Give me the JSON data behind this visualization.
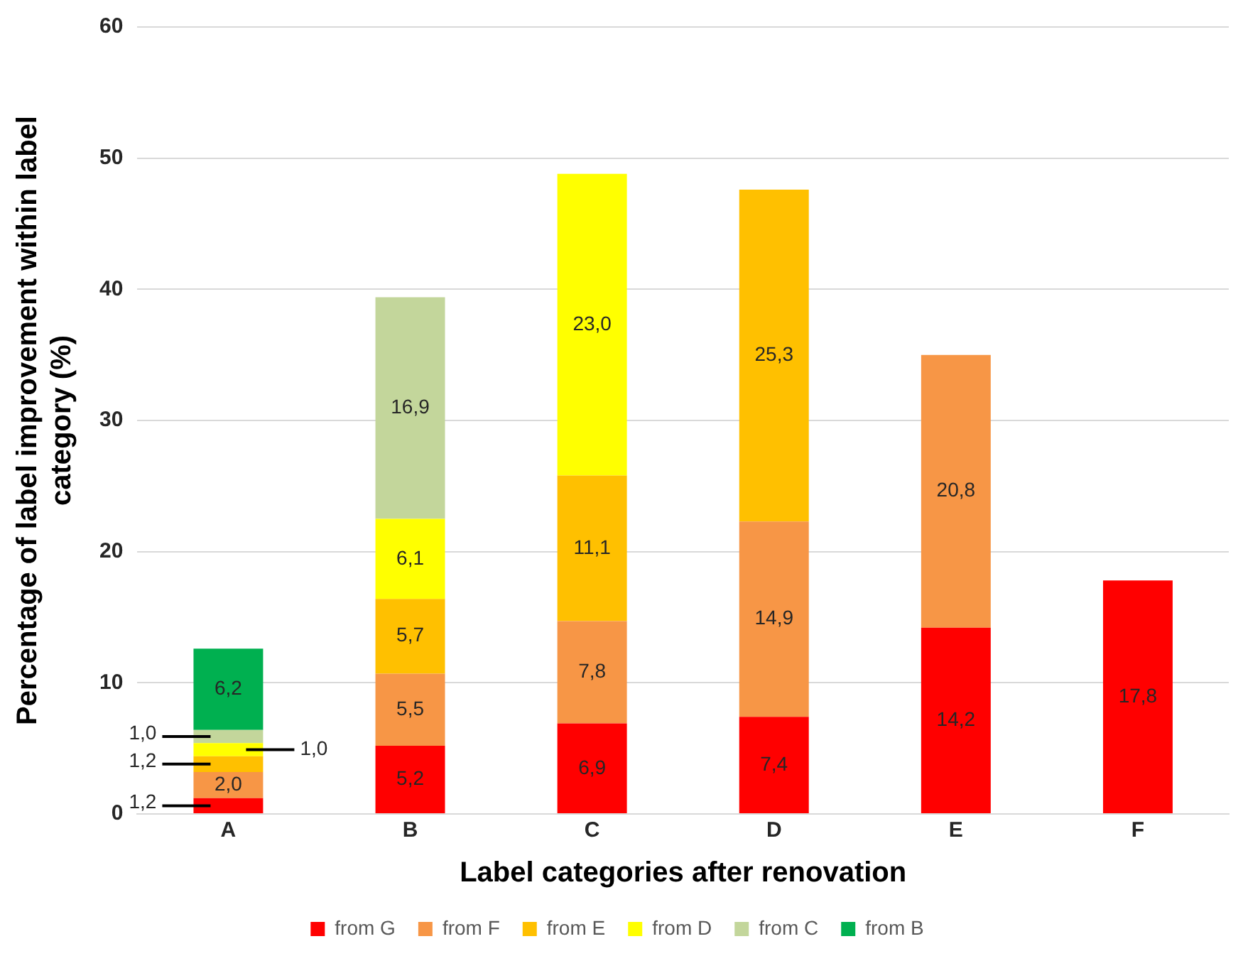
{
  "chart_data": {
    "type": "bar",
    "stacked": true,
    "xlabel": "Label categories after renovation",
    "ylabel": "Percentage of label improvement within label category (%)",
    "categories": [
      "A",
      "B",
      "C",
      "D",
      "E",
      "F"
    ],
    "series": [
      {
        "name": "from G",
        "color": "#ff0000",
        "values": [
          1.2,
          5.2,
          6.9,
          7.4,
          14.2,
          17.8
        ],
        "value_labels": [
          "1,2",
          "5,2",
          "6,9",
          "7,4",
          "14,2",
          "17,8"
        ]
      },
      {
        "name": "from F",
        "color": "#f79646",
        "values": [
          2.0,
          5.5,
          7.8,
          14.9,
          20.8,
          null
        ],
        "value_labels": [
          "2,0",
          "5,5",
          "7,8",
          "14,9",
          "20,8",
          null
        ]
      },
      {
        "name": "from E",
        "color": "#ffc000",
        "values": [
          1.2,
          5.7,
          11.1,
          25.3,
          null,
          null
        ],
        "value_labels": [
          "1,2",
          "5,7",
          "11,1",
          "25,3",
          null,
          null
        ]
      },
      {
        "name": "from D",
        "color": "#ffff00",
        "values": [
          1.0,
          6.1,
          23.0,
          null,
          null,
          null
        ],
        "value_labels": [
          "1,0",
          "6,1",
          "23,0",
          null,
          null,
          null
        ]
      },
      {
        "name": "from C",
        "color": "#c3d69b",
        "values": [
          1.0,
          16.9,
          null,
          null,
          null,
          null
        ],
        "value_labels": [
          "1,0",
          "16,9",
          null,
          null,
          null,
          null
        ]
      },
      {
        "name": "from B",
        "color": "#00b050",
        "values": [
          6.2,
          null,
          null,
          null,
          null,
          null
        ],
        "value_labels": [
          "6,2",
          null,
          null,
          null,
          null,
          null
        ]
      }
    ],
    "ylim": [
      0,
      60
    ],
    "yticks": [
      0,
      10,
      20,
      30,
      40,
      50,
      60
    ],
    "grid": "y",
    "legend": "bottom"
  }
}
